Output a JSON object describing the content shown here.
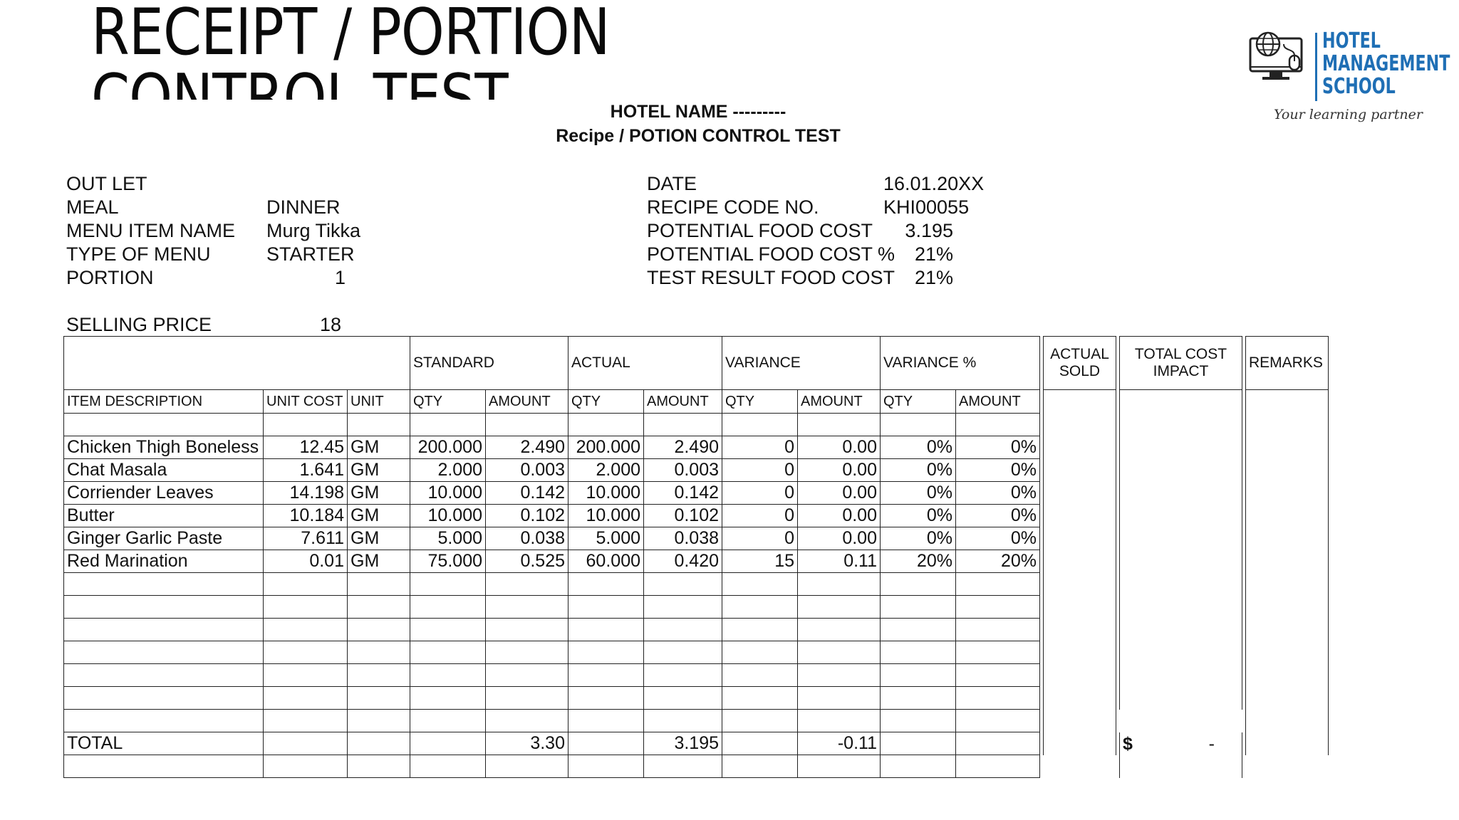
{
  "slide": {
    "title": "RECEIPT / PORTION CONTROL TEST"
  },
  "logo": {
    "line1": "HOTEL",
    "line2": "MANAGEMENT",
    "line3": "SCHOOL",
    "tagline": "Your learning partner",
    "icon": "computer-globe-icon",
    "color": "#1f6fb5"
  },
  "heading": {
    "hotel": "HOTEL NAME ---------",
    "subtitle": "Recipe / POTION CONTROL TEST"
  },
  "left_info": [
    {
      "label": "OUT LET",
      "value": ""
    },
    {
      "label": "MEAL",
      "value": "DINNER"
    },
    {
      "label": "MENU ITEM NAME",
      "value": "Murg Tikka"
    },
    {
      "label": "TYPE OF MENU",
      "value": "STARTER"
    },
    {
      "label": "PORTION",
      "value": "1"
    }
  ],
  "selling_price": {
    "label": "SELLING PRICE",
    "value": "18"
  },
  "right_info": [
    {
      "label": "DATE",
      "value": "16.01.20XX"
    },
    {
      "label": "RECIPE CODE NO.",
      "value": "KHI00055"
    },
    {
      "label": "POTENTIAL FOOD COST",
      "value": "3.195"
    },
    {
      "label": "POTENTIAL FOOD COST %",
      "value": "21%"
    },
    {
      "label": "TEST RESULT FOOD COST",
      "value": "21%"
    }
  ],
  "table": {
    "group_headers": {
      "standard": "STANDARD",
      "actual": "ACTUAL",
      "variance": "VARIANCE",
      "variance_pct": "VARIANCE %",
      "actual_sold_1": "ACTUAL",
      "actual_sold_2": "SOLD",
      "total_cost_1": "TOTAL COST",
      "total_cost_2": "IMPACT",
      "remarks": "REMARKS"
    },
    "columns": {
      "item": "ITEM DESCRIPTION",
      "unit_cost": "UNIT COST",
      "unit": "UNIT",
      "qty": "QTY",
      "amount": "AMOUNT"
    },
    "rows": [
      {
        "item": "Chicken Thigh Boneless",
        "unit_cost": "12.45",
        "unit": "GM",
        "std_qty": "200.000",
        "std_amt": "2.490",
        "act_qty": "200.000",
        "act_amt": "2.490",
        "var_qty": "0",
        "var_amt": "0.00",
        "pct_qty": "0%",
        "pct_amt": "0%"
      },
      {
        "item": "Chat Masala",
        "unit_cost": "1.641",
        "unit": "GM",
        "std_qty": "2.000",
        "std_amt": "0.003",
        "act_qty": "2.000",
        "act_amt": "0.003",
        "var_qty": "0",
        "var_amt": "0.00",
        "pct_qty": "0%",
        "pct_amt": "0%"
      },
      {
        "item": "Corriender Leaves",
        "unit_cost": "14.198",
        "unit": "GM",
        "std_qty": "10.000",
        "std_amt": "0.142",
        "act_qty": "10.000",
        "act_amt": "0.142",
        "var_qty": "0",
        "var_amt": "0.00",
        "pct_qty": "0%",
        "pct_amt": "0%"
      },
      {
        "item": "Butter",
        "unit_cost": "10.184",
        "unit": "GM",
        "std_qty": "10.000",
        "std_amt": "0.102",
        "act_qty": "10.000",
        "act_amt": "0.102",
        "var_qty": "0",
        "var_amt": "0.00",
        "pct_qty": "0%",
        "pct_amt": "0%"
      },
      {
        "item": "Ginger Garlic Paste",
        "unit_cost": "7.611",
        "unit": "GM",
        "std_qty": "5.000",
        "std_amt": "0.038",
        "act_qty": "5.000",
        "act_amt": "0.038",
        "var_qty": "0",
        "var_amt": "0.00",
        "pct_qty": "0%",
        "pct_amt": "0%"
      },
      {
        "item": "Red Marination",
        "unit_cost": "0.01",
        "unit": "GM",
        "std_qty": "75.000",
        "std_amt": "0.525",
        "act_qty": "60.000",
        "act_amt": "0.420",
        "var_qty": "15",
        "var_amt": "0.11",
        "pct_qty": "20%",
        "pct_amt": "20%"
      }
    ],
    "total": {
      "label": "TOTAL",
      "std_amt": "3.30",
      "act_amt": "3.195",
      "var_amt": "-0.11",
      "cost_currency": "$",
      "cost_value": "-"
    }
  }
}
